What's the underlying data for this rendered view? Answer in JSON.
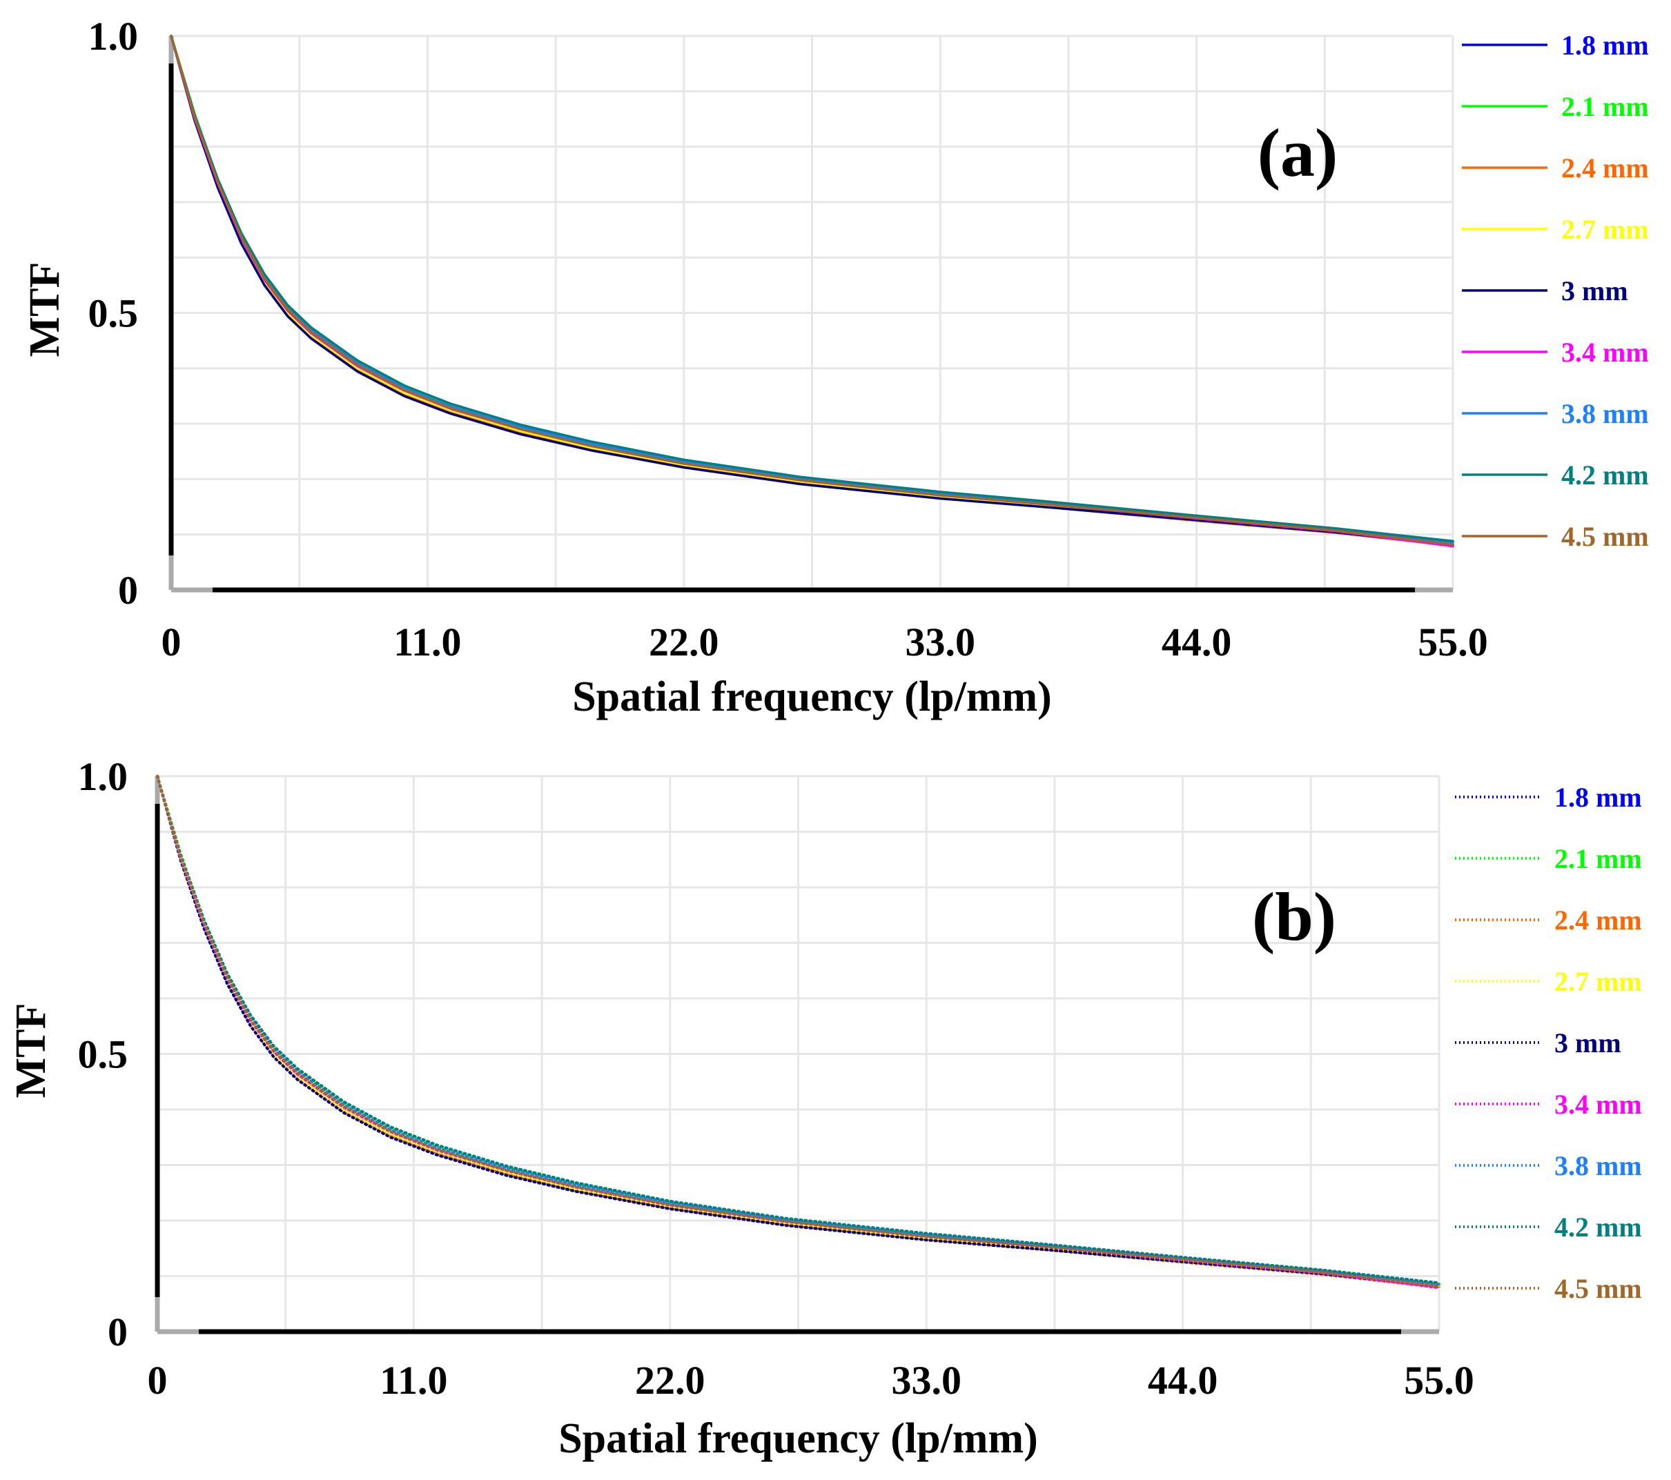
{
  "chart_data": [
    {
      "type": "line",
      "panel_label": "(a)",
      "line_style": "solid",
      "xlabel": "Spatial frequency (lp/mm)",
      "ylabel": "MTF",
      "xlim": [
        0,
        55
      ],
      "ylim": [
        0,
        1
      ],
      "x_ticks": [
        "0",
        "11.0",
        "22.0",
        "33.0",
        "44.0",
        "55.0"
      ],
      "y_ticks": [
        "0",
        "0.5",
        "1.0"
      ],
      "grid": true,
      "legend_position": "right",
      "x": [
        0,
        1,
        2,
        3,
        4,
        5,
        6,
        8,
        10,
        12,
        15,
        18,
        22,
        27,
        33,
        38,
        44,
        50,
        55
      ],
      "series": [
        {
          "name": "1.8 mm",
          "color": "#0000ff",
          "values": [
            1.0,
            0.85,
            0.73,
            0.63,
            0.555,
            0.5,
            0.46,
            0.4,
            0.355,
            0.323,
            0.286,
            0.256,
            0.225,
            0.195,
            0.168,
            0.15,
            0.127,
            0.105,
            0.082
          ]
        },
        {
          "name": "2.1 mm",
          "color": "#00ff00",
          "values": [
            1.0,
            0.86,
            0.74,
            0.642,
            0.568,
            0.512,
            0.472,
            0.412,
            0.367,
            0.334,
            0.296,
            0.266,
            0.233,
            0.202,
            0.175,
            0.156,
            0.132,
            0.11,
            0.086
          ]
        },
        {
          "name": "2.4 mm",
          "color": "#ff6600",
          "values": [
            1.0,
            0.85,
            0.728,
            0.628,
            0.552,
            0.496,
            0.456,
            0.396,
            0.352,
            0.32,
            0.283,
            0.253,
            0.222,
            0.192,
            0.166,
            0.148,
            0.125,
            0.103,
            0.08
          ]
        },
        {
          "name": "2.7 mm",
          "color": "#ffff00",
          "values": [
            1.0,
            0.852,
            0.732,
            0.632,
            0.556,
            0.5,
            0.46,
            0.4,
            0.356,
            0.324,
            0.287,
            0.257,
            0.226,
            0.196,
            0.169,
            0.151,
            0.128,
            0.106,
            0.083
          ]
        },
        {
          "name": "3 mm",
          "color": "#000080",
          "values": [
            1.0,
            0.848,
            0.726,
            0.626,
            0.55,
            0.494,
            0.454,
            0.394,
            0.35,
            0.318,
            0.281,
            0.252,
            0.221,
            0.191,
            0.165,
            0.148,
            0.126,
            0.104,
            0.081
          ]
        },
        {
          "name": "3.4 mm",
          "color": "#ff00ff",
          "values": [
            1.0,
            0.852,
            0.734,
            0.636,
            0.56,
            0.504,
            0.464,
            0.404,
            0.36,
            0.327,
            0.29,
            0.26,
            0.228,
            0.198,
            0.171,
            0.153,
            0.129,
            0.106,
            0.079
          ]
        },
        {
          "name": "3.8 mm",
          "color": "#1e7fff",
          "values": [
            1.0,
            0.856,
            0.738,
            0.64,
            0.565,
            0.509,
            0.469,
            0.409,
            0.364,
            0.331,
            0.294,
            0.264,
            0.232,
            0.201,
            0.174,
            0.156,
            0.132,
            0.109,
            0.085
          ]
        },
        {
          "name": "4.2 mm",
          "color": "#008080",
          "values": [
            1.0,
            0.858,
            0.742,
            0.645,
            0.57,
            0.514,
            0.474,
            0.414,
            0.369,
            0.336,
            0.298,
            0.268,
            0.235,
            0.204,
            0.177,
            0.158,
            0.134,
            0.111,
            0.088
          ]
        },
        {
          "name": "4.5 mm",
          "color": "#a0662a",
          "values": [
            1.0,
            0.854,
            0.736,
            0.638,
            0.562,
            0.506,
            0.466,
            0.406,
            0.361,
            0.328,
            0.29,
            0.26,
            0.228,
            0.198,
            0.171,
            0.153,
            0.13,
            0.107,
            0.082
          ]
        }
      ]
    },
    {
      "type": "line",
      "panel_label": "(b)",
      "line_style": "dotted",
      "xlabel": "Spatial frequency (lp/mm)",
      "ylabel": "MTF",
      "xlim": [
        0,
        55
      ],
      "ylim": [
        0,
        1
      ],
      "x_ticks": [
        "0",
        "11.0",
        "22.0",
        "33.0",
        "44.0",
        "55.0"
      ],
      "y_ticks": [
        "0",
        "0.5",
        "1.0"
      ],
      "grid": true,
      "legend_position": "right",
      "x": [
        0,
        1,
        2,
        3,
        4,
        5,
        6,
        8,
        10,
        12,
        15,
        18,
        22,
        27,
        33,
        38,
        44,
        50,
        55
      ],
      "series": [
        {
          "name": "1.8 mm",
          "color": "#0000ff",
          "values": [
            1.0,
            0.85,
            0.73,
            0.63,
            0.555,
            0.5,
            0.46,
            0.4,
            0.355,
            0.323,
            0.286,
            0.256,
            0.225,
            0.195,
            0.168,
            0.15,
            0.127,
            0.105,
            0.082
          ]
        },
        {
          "name": "2.1 mm",
          "color": "#00ff00",
          "values": [
            1.0,
            0.86,
            0.74,
            0.642,
            0.568,
            0.512,
            0.472,
            0.412,
            0.367,
            0.334,
            0.296,
            0.266,
            0.233,
            0.202,
            0.175,
            0.156,
            0.132,
            0.11,
            0.086
          ]
        },
        {
          "name": "2.4 mm",
          "color": "#ff6600",
          "values": [
            1.0,
            0.85,
            0.728,
            0.628,
            0.552,
            0.496,
            0.456,
            0.396,
            0.352,
            0.32,
            0.283,
            0.253,
            0.222,
            0.192,
            0.166,
            0.148,
            0.125,
            0.103,
            0.08
          ]
        },
        {
          "name": "2.7 mm",
          "color": "#ffff00",
          "values": [
            1.0,
            0.852,
            0.732,
            0.632,
            0.556,
            0.5,
            0.46,
            0.4,
            0.356,
            0.324,
            0.287,
            0.257,
            0.226,
            0.196,
            0.169,
            0.151,
            0.128,
            0.106,
            0.083
          ]
        },
        {
          "name": "3 mm",
          "color": "#000080",
          "values": [
            1.0,
            0.848,
            0.726,
            0.626,
            0.55,
            0.494,
            0.454,
            0.394,
            0.35,
            0.318,
            0.281,
            0.252,
            0.221,
            0.191,
            0.165,
            0.148,
            0.126,
            0.104,
            0.081
          ]
        },
        {
          "name": "3.4 mm",
          "color": "#ff00ff",
          "values": [
            1.0,
            0.852,
            0.734,
            0.636,
            0.56,
            0.504,
            0.464,
            0.404,
            0.36,
            0.327,
            0.29,
            0.26,
            0.228,
            0.198,
            0.171,
            0.153,
            0.129,
            0.106,
            0.079
          ]
        },
        {
          "name": "3.8 mm",
          "color": "#1e7fff",
          "values": [
            1.0,
            0.856,
            0.738,
            0.64,
            0.565,
            0.509,
            0.469,
            0.409,
            0.364,
            0.331,
            0.294,
            0.264,
            0.232,
            0.201,
            0.174,
            0.156,
            0.132,
            0.109,
            0.085
          ]
        },
        {
          "name": "4.2 mm",
          "color": "#008080",
          "values": [
            1.0,
            0.858,
            0.742,
            0.645,
            0.57,
            0.514,
            0.474,
            0.414,
            0.369,
            0.336,
            0.298,
            0.268,
            0.235,
            0.204,
            0.177,
            0.158,
            0.134,
            0.111,
            0.088
          ]
        },
        {
          "name": "4.5 mm",
          "color": "#a0662a",
          "values": [
            1.0,
            0.854,
            0.736,
            0.638,
            0.562,
            0.506,
            0.466,
            0.406,
            0.361,
            0.328,
            0.29,
            0.26,
            0.228,
            0.198,
            0.171,
            0.153,
            0.13,
            0.107,
            0.082
          ]
        }
      ]
    }
  ]
}
